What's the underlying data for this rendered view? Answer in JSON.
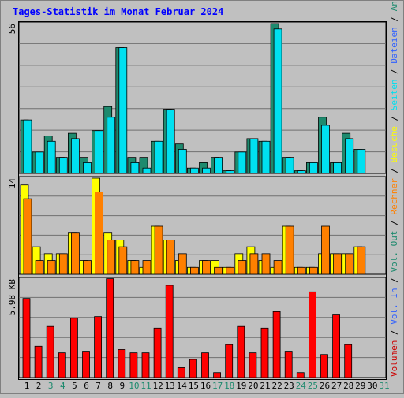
{
  "chart_data": {
    "type": "bar",
    "title": "Tages-Statistik im Monat Februar 2024",
    "days": [
      "1",
      "2",
      "3",
      "4",
      "5",
      "6",
      "7",
      "8",
      "9",
      "10",
      "11",
      "12",
      "13",
      "14",
      "15",
      "16",
      "17",
      "18",
      "19",
      "20",
      "21",
      "22",
      "23",
      "24",
      "25",
      "26",
      "27",
      "28",
      "29",
      "30",
      "31"
    ],
    "weekend_days": [
      "3",
      "4",
      "10",
      "11",
      "17",
      "18",
      "24",
      "25",
      "31"
    ],
    "panels": [
      {
        "id": "top",
        "max_label": "56",
        "ylim": [
          0,
          56
        ],
        "series": [
          {
            "name": "Anfragen",
            "color": "#1e8a6e",
            "values": [
              20,
              8,
              14,
              6,
              15,
              6,
              16,
              25,
              47,
              6,
              6,
              12,
              24,
              11,
              2,
              4,
              6,
              1,
              8,
              13,
              12,
              56,
              6,
              1,
              4,
              21,
              4,
              15,
              9,
              0,
              0
            ]
          },
          {
            "name": "Dateien",
            "color": "#00e0f0",
            "values": [
              20,
              8,
              12,
              6,
              13,
              4,
              16,
              21,
              47,
              4,
              2,
              12,
              24,
              9,
              2,
              2,
              6,
              1,
              8,
              13,
              12,
              54,
              6,
              1,
              4,
              18,
              4,
              13,
              9,
              0,
              0
            ]
          },
          {
            "name": "Seiten",
            "color": "#00e0f0",
            "values": []
          }
        ]
      },
      {
        "id": "middle",
        "max_label": "14",
        "ylim": [
          0,
          14
        ],
        "series": [
          {
            "name": "Besuche",
            "color": "#ffff00",
            "values": [
              13,
              4,
              3,
              3,
              6,
              2,
              14,
              6,
              5,
              2,
              1,
              7,
              5,
              2,
              1,
              2,
              2,
              1,
              3,
              4,
              2,
              1,
              7,
              1,
              1,
              3,
              3,
              3,
              4,
              0,
              0
            ]
          },
          {
            "name": "Rechner",
            "color": "#ff8000",
            "values": [
              11,
              2,
              2,
              3,
              6,
              2,
              12,
              5,
              4,
              2,
              2,
              7,
              5,
              3,
              1,
              2,
              1,
              1,
              2,
              3,
              3,
              2,
              7,
              1,
              1,
              7,
              3,
              3,
              4,
              0,
              0
            ]
          }
        ]
      },
      {
        "id": "bottom",
        "max_label": "5.98 KB",
        "ylim": [
          0,
          5.98
        ],
        "series": [
          {
            "name": "Volumen",
            "color": "#ff0000",
            "values": [
              4.8,
              1.9,
              3.1,
              1.5,
              3.6,
              1.6,
              3.7,
              6.0,
              1.7,
              1.5,
              1.5,
              3.0,
              5.6,
              0.6,
              1.1,
              1.5,
              0.3,
              2.0,
              3.1,
              1.5,
              3.0,
              4.0,
              1.6,
              0.3,
              5.2,
              1.4,
              3.8,
              2.0,
              0,
              0,
              0
            ]
          }
        ]
      }
    ],
    "right_labels": [
      {
        "text": "Volumen",
        "color": "#cc0000"
      },
      {
        "text": " / ",
        "color": "#000000"
      },
      {
        "text": "Vol. In",
        "color": "#3060ff"
      },
      {
        "text": " / ",
        "color": "#000000"
      },
      {
        "text": "Vol. Out",
        "color": "#1e8a6e"
      },
      {
        "text": " / ",
        "color": "#000000"
      },
      {
        "text": "Rechner",
        "color": "#ff8000"
      },
      {
        "text": " / ",
        "color": "#000000"
      },
      {
        "text": "Besuche",
        "color": "#ffff00"
      },
      {
        "text": " / ",
        "color": "#000000"
      },
      {
        "text": "Seiten",
        "color": "#00e0f0"
      },
      {
        "text": " / ",
        "color": "#000000"
      },
      {
        "text": "Dateien",
        "color": "#3060ff"
      },
      {
        "text": " / ",
        "color": "#000000"
      },
      {
        "text": "Anfragen",
        "color": "#1e8a6e"
      }
    ],
    "title_color": "#0000ff",
    "weekday_color": "#000000",
    "weekend_color": "#1e8a6e"
  }
}
